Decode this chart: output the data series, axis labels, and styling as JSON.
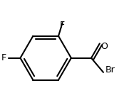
{
  "bg_color": "#ffffff",
  "line_color": "#000000",
  "line_width": 1.5,
  "font_size": 9,
  "font_color": "#000000",
  "label_F1": "F",
  "label_F2": "F",
  "label_Br": "Br",
  "label_O": "O",
  "figsize": [
    1.95,
    1.55
  ],
  "dpi": 100
}
